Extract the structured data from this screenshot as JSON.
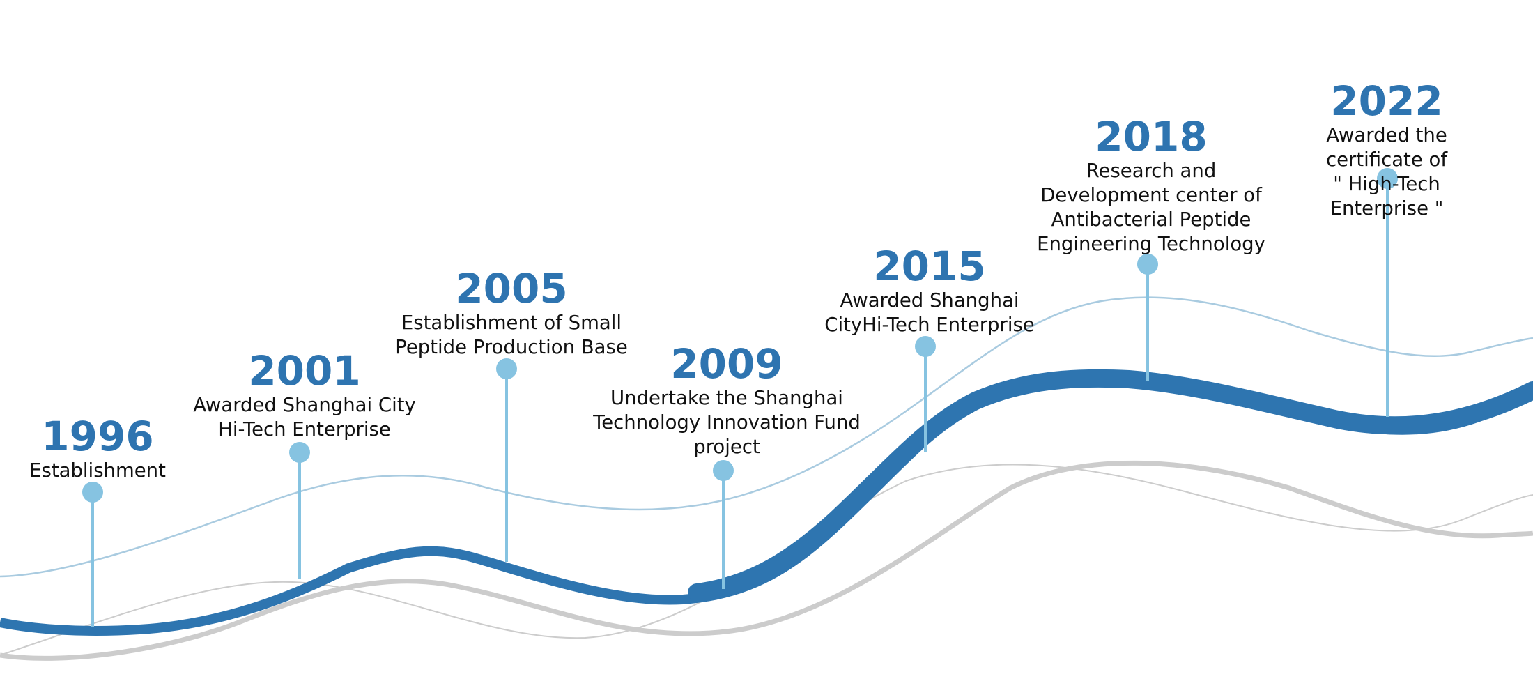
{
  "milestones": [
    {
      "year": "1996",
      "text": "Establishment"
    },
    {
      "year": "2001",
      "text": "Awarded Shanghai City\nHi-Tech Enterprise"
    },
    {
      "year": "2005",
      "text": "Establishment of Small\nPeptide Production Base"
    },
    {
      "year": "2009",
      "text": "Undertake the Shanghai\nTechnology Innovation Fund\nproject"
    },
    {
      "year": "2015",
      "text": "Awarded Shanghai\nCityHi-Tech Enterprise"
    },
    {
      "year": "2018",
      "text": "Research and\nDevelopment center of\nAntibacterial Peptide\nEngineering Technology"
    },
    {
      "year": "2022",
      "text": "Awarded the certificate of\n\" High-Tech Enterprise \""
    }
  ],
  "colors": {
    "main_wave": "#2e75b0",
    "light_wave": "#a9cbe0",
    "gray_wave": "#cccccc",
    "pin": "#86c3e1",
    "year_text": "#2e74b0",
    "body_text": "#111111"
  }
}
